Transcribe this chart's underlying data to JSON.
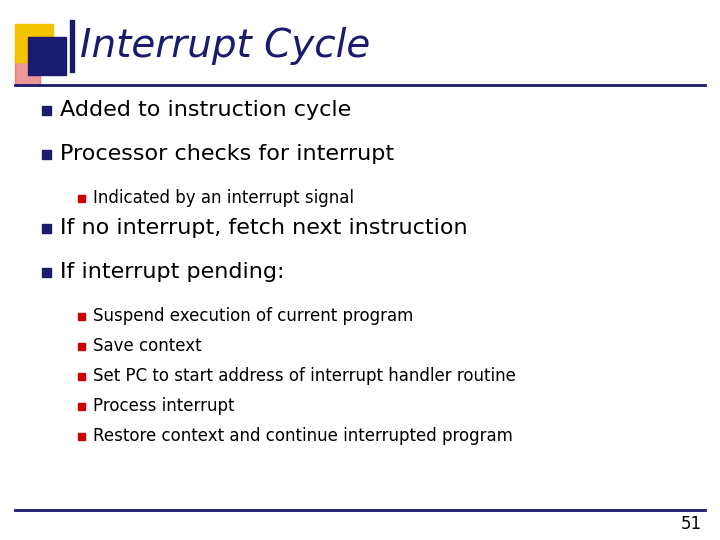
{
  "title": "Interrupt Cycle",
  "title_color": "#1a1a6e",
  "title_fontsize": 28,
  "background_color": "#ffffff",
  "slide_number": "51",
  "bullet_color": "#1a1a6e",
  "sub_bullet_color": "#cc0000",
  "text_color": "#000000",
  "header_line_color": "#1a1a6e",
  "footer_line_color": "#1a1a6e",
  "decoration_yellow": "#f5c400",
  "decoration_blue": "#1a1a6e",
  "decoration_red": "#dd4444",
  "bullets": [
    {
      "level": 1,
      "text": "Added to instruction cycle",
      "fontsize": 16,
      "bold": false
    },
    {
      "level": 1,
      "text": "Processor checks for interrupt",
      "fontsize": 16,
      "bold": false
    },
    {
      "level": 2,
      "text": "Indicated by an interrupt signal",
      "fontsize": 12,
      "bold": false
    },
    {
      "level": 1,
      "text": "If no interrupt, fetch next instruction",
      "fontsize": 16,
      "bold": false
    },
    {
      "level": 1,
      "text": "If interrupt pending:",
      "fontsize": 16,
      "bold": false
    },
    {
      "level": 2,
      "text": "Suspend execution of current program",
      "fontsize": 12,
      "bold": false
    },
    {
      "level": 2,
      "text": "Save context",
      "fontsize": 12,
      "bold": false
    },
    {
      "level": 2,
      "text": "Set PC to start address of interrupt handler routine",
      "fontsize": 12,
      "bold": false
    },
    {
      "level": 2,
      "text": "Process interrupt",
      "fontsize": 12,
      "bold": false
    },
    {
      "level": 2,
      "text": "Restore context and continue interrupted program",
      "fontsize": 12,
      "bold": false
    }
  ]
}
